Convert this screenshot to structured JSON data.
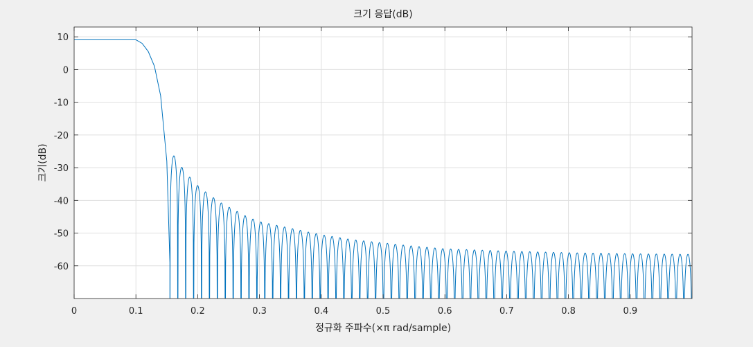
{
  "chart_data": {
    "type": "line",
    "title": "크기 응답(dB)",
    "xlabel": "정규화 주파수(×π rad/sample)",
    "ylabel": "크기(dB)",
    "xlim": [
      0,
      1
    ],
    "ylim": [
      -70,
      13
    ],
    "xticks": [
      0,
      0.1,
      0.2,
      0.3,
      0.4,
      0.5,
      0.6,
      0.7,
      0.8,
      0.9
    ],
    "xtick_labels": [
      "0",
      "0.1",
      "0.2",
      "0.3",
      "0.4",
      "0.5",
      "0.6",
      "0.7",
      "0.8",
      "0.9"
    ],
    "yticks": [
      10,
      0,
      -10,
      -20,
      -30,
      -40,
      -50,
      -60
    ],
    "ytick_labels": [
      "10",
      "0",
      "-10",
      "-20",
      "-30",
      "-40",
      "-50",
      "-60"
    ],
    "grid": true,
    "line_color": "#0072bd",
    "series": [
      {
        "passband_db": 9.1,
        "passband_edge": 0.1,
        "transition_points": [
          [
            0.1,
            9.1
          ],
          [
            0.11,
            8.0
          ],
          [
            0.12,
            5.5
          ],
          [
            0.13,
            1.0
          ],
          [
            0.14,
            -8.0
          ],
          [
            0.15,
            -28.0
          ],
          [
            0.155,
            -59.0
          ]
        ],
        "sidelobe_spacing": 0.0128,
        "first_null": 0.155,
        "sidelobe_peaks": [
          [
            0.16,
            -26
          ],
          [
            0.18,
            -31.5
          ],
          [
            0.2,
            -35.5
          ],
          [
            0.22,
            -38.5
          ],
          [
            0.24,
            -41
          ],
          [
            0.26,
            -43
          ],
          [
            0.28,
            -45
          ],
          [
            0.3,
            -46.5
          ],
          [
            0.35,
            -48.5
          ],
          [
            0.4,
            -50.5
          ],
          [
            0.45,
            -52
          ],
          [
            0.5,
            -53
          ],
          [
            0.55,
            -54
          ],
          [
            0.6,
            -54.8
          ],
          [
            0.7,
            -55.5
          ],
          [
            0.8,
            -56
          ],
          [
            0.9,
            -56.3
          ],
          [
            1.0,
            -56.5
          ]
        ]
      }
    ]
  }
}
